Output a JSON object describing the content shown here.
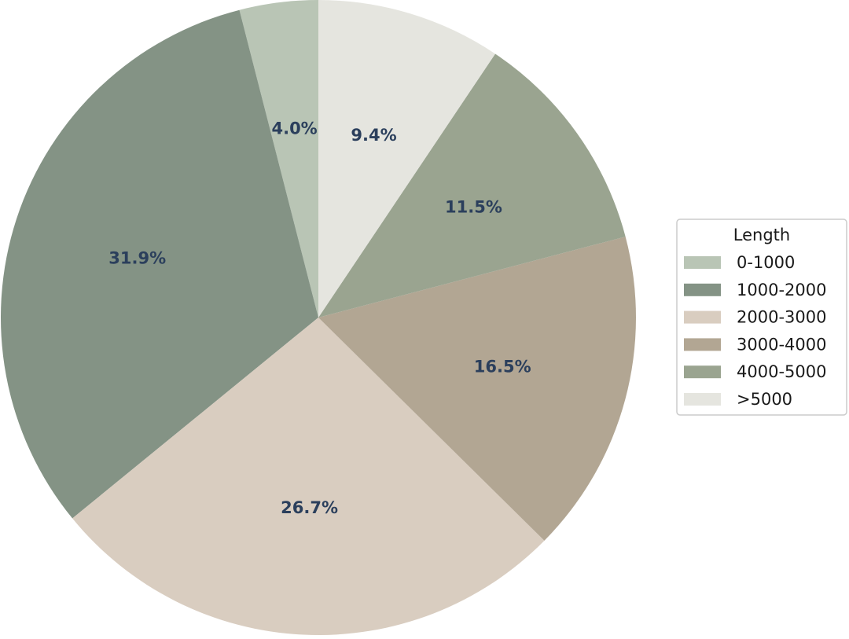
{
  "chart_data": {
    "type": "pie",
    "title": "",
    "categories": [
      "0-1000",
      "1000-2000",
      "2000-3000",
      "3000-4000",
      "4000-5000",
      ">5000"
    ],
    "values": [
      4.0,
      31.9,
      26.7,
      16.5,
      11.5,
      9.4
    ],
    "value_labels": [
      "4.0%",
      "31.9%",
      "26.7%",
      "16.5%",
      "11.5%",
      "9.4%"
    ],
    "colors": [
      "#b9c5b5",
      "#849385",
      "#d9cdc0",
      "#b2a693",
      "#9aa490",
      "#e5e5df"
    ],
    "start_angle_deg": 90,
    "direction": "counterclockwise",
    "legend": {
      "title": "Length",
      "placement": "center-right"
    }
  }
}
